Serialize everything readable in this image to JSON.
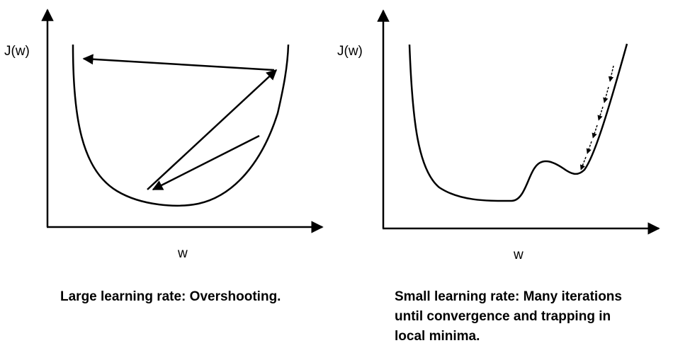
{
  "left_panel": {
    "y_axis_label": "J(w)",
    "x_axis_label": "w",
    "caption": "Large learning rate: Overshooting."
  },
  "right_panel": {
    "y_axis_label": "J(w)",
    "x_axis_label": "w",
    "caption": "Small learning rate: Many iterations\nuntil convergence and trapping in\nlocal minima."
  },
  "colors": {
    "ink": "#000000",
    "background": "#ffffff"
  }
}
